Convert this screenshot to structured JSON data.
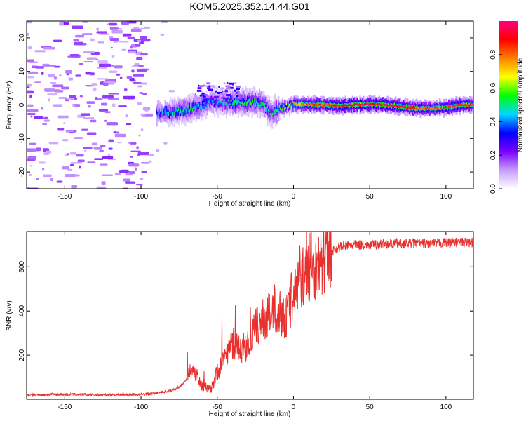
{
  "figure": {
    "title": "KOM5.2025.352.14.44.G01"
  },
  "chart_data": [
    {
      "type": "heatmap",
      "name": "spectrogram",
      "xlabel": "Height of straight line (km)",
      "ylabel": "Frequency (Hz)",
      "xlim": [
        -175,
        118
      ],
      "ylim": [
        -25,
        25
      ],
      "xticks": [
        -150,
        -100,
        -50,
        0,
        50,
        100
      ],
      "yticks": [
        -20,
        -10,
        0,
        10,
        20
      ],
      "colorbar": {
        "label": "Normalized spectral amplitude",
        "range": [
          0,
          1
        ],
        "ticks": [
          0.0,
          0.2,
          0.4,
          0.6,
          0.8
        ],
        "colors": [
          "#ffffff",
          "#c79cff",
          "#7a00ff",
          "#0000ff",
          "#00d8ff",
          "#00ff00",
          "#ffff00",
          "#ff8000",
          "#ff0000",
          "#ff0080"
        ]
      },
      "ridge": {
        "comment": "frequency (Hz) of dominant signal vs height (km)",
        "x": [
          -90,
          -80,
          -70,
          -62,
          -55,
          -48,
          -40,
          -30,
          -20,
          -15,
          -10,
          -5,
          0,
          10,
          20,
          30,
          40,
          50,
          60,
          70,
          80,
          90,
          100,
          110,
          118
        ],
        "freq": [
          -2.5,
          -2.2,
          -1.5,
          -0.5,
          0.8,
          1.0,
          0.5,
          1.0,
          0.3,
          -2.5,
          -1.2,
          -0.5,
          0.2,
          0.1,
          0.0,
          -0.3,
          0.0,
          0.2,
          0.0,
          -0.5,
          -1.0,
          -1.0,
          -0.8,
          0.0,
          0.0
        ],
        "amplitude": [
          0.35,
          0.45,
          0.5,
          0.45,
          0.4,
          0.45,
          0.5,
          0.55,
          0.5,
          0.5,
          0.55,
          0.6,
          0.7,
          0.8,
          0.85,
          0.9,
          0.9,
          0.9,
          0.9,
          0.9,
          0.85,
          0.8,
          0.85,
          0.85,
          0.85
        ]
      }
    },
    {
      "type": "line",
      "name": "snr",
      "xlabel": "Height of straight line (km)",
      "ylabel": "SNR (v/v)",
      "xlim": [
        -175,
        118
      ],
      "ylim": [
        0,
        760
      ],
      "xticks": [
        -150,
        -100,
        -50,
        0,
        50,
        100
      ],
      "yticks": [
        200,
        400,
        600
      ],
      "color": "#e8302e",
      "series": {
        "name": "SNR",
        "x": [
          -175,
          -150,
          -125,
          -100,
          -90,
          -80,
          -75,
          -70,
          -67,
          -64,
          -60,
          -55,
          -50,
          -45,
          -40,
          -35,
          -30,
          -25,
          -20,
          -15,
          -10,
          -5,
          0,
          5,
          10,
          15,
          20,
          25,
          30,
          40,
          50,
          60,
          70,
          80,
          90,
          100,
          110,
          118
        ],
        "y": [
          20,
          22,
          20,
          22,
          28,
          40,
          55,
          90,
          150,
          120,
          60,
          40,
          120,
          200,
          250,
          220,
          240,
          320,
          360,
          380,
          400,
          370,
          470,
          550,
          580,
          600,
          630,
          670,
          690,
          700,
          700,
          705,
          705,
          708,
          705,
          710,
          710,
          710
        ]
      }
    }
  ]
}
